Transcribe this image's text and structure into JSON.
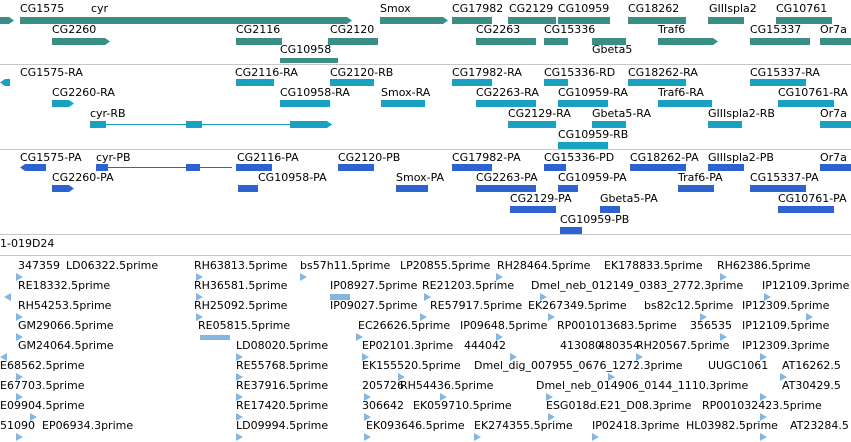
{
  "colors": {
    "gene": "#3a8e86",
    "transcript_ra": "#1aa0c0",
    "transcript_pa": "#2e63cf",
    "est": "#86b6de",
    "divider": "#c8c8c8"
  },
  "gene_track": {
    "labels": [
      "CG1575",
      "cyr",
      "CG2260",
      "CG2116",
      "CG10958",
      "CG2120",
      "Smox",
      "CG17982",
      "CG2129",
      "CG10959",
      "CG2263",
      "CG15336",
      "Gbeta5",
      "CG18262",
      "Traf6",
      "GIIIspla2",
      "CG10761",
      "CG15337",
      "Or7a"
    ]
  },
  "transcript_track": {
    "labels": [
      "CG1575-RA",
      "CG2260-RA",
      "cyr-RB",
      "CG2116-RA",
      "CG2120-RB",
      "CG10958-RA",
      "Smox-RA",
      "CG17982-RA",
      "CG2263-RA",
      "CG2129-RA",
      "CG15336-RD",
      "CG10959-RA",
      "Gbeta5-RA",
      "CG10959-RB",
      "CG18262-RA",
      "Traf6-RA",
      "GIIIspla2-RB",
      "CG15337-RA",
      "CG10761-RA",
      "Or7a"
    ]
  },
  "protein_track": {
    "labels": [
      "CG1575-PA",
      "cyr-PB",
      "CG2260-PA",
      "CG2116-PA",
      "CG10958-PA",
      "CG2120-PB",
      "Smox-PA",
      "CG17982-PA",
      "CG2263-PA",
      "CG2129-PA",
      "CG15336-PD",
      "CG10959-PA",
      "Gbeta5-PA",
      "CG10959-PB",
      "CG18262-PA",
      "GIIIspla2-PB",
      "Traf6-PA",
      "CG15337-PA",
      "CG10761-PA",
      "Or7a"
    ]
  },
  "clone_track": {
    "label": "1-019D24"
  },
  "est_track": {
    "labels": [
      "347359",
      "LD06322.5prime",
      "RH63813.5prime",
      "bs57h11.5prime",
      "LP20855.5prime",
      "RH28464.5prime",
      "EK178833.5prime",
      "RH62386.5prime",
      "RE18332.5prime",
      "RH36581.5prime",
      "IP08927.5prime",
      "RE21203.5prime",
      "Dmel_neb_012149_0383_2772.3prime",
      "IP12109.3prime",
      "RH54253.5prime",
      "RH25092.5prime",
      "IP09027.5prime",
      "RE57917.5prime",
      "EK267349.5prime",
      "bs82c12.5prime",
      "IP12309.5prime",
      "GM29066.5prime",
      "RE05815.5prime",
      "EC26626.5prime",
      "IP09648.5prime",
      "RP001013683.5prime",
      "356535",
      "IP12109.5prime",
      "GM24064.5prime",
      "LD08020.5prime",
      "EP02101.3prime",
      "444042",
      "413080",
      "480354",
      "RH20567.5prime",
      "IP12309.3prime",
      "E68562.5prime",
      "RE55768.5prime",
      "EK155520.5prime",
      "Dmel_dig_007955_0676_1272.3prime",
      "UUGC1061",
      "AT16262.5",
      "E67703.5prime",
      "RE37916.5prime",
      "205726",
      "RH54436.5prime",
      "Dmel_neb_014906_0144_1110.3prime",
      "AT30429.5",
      "E09904.5prime",
      "RE17420.5prime",
      "306642",
      "EK059710.5prime",
      "ESG018d.E21_D08.3prime",
      "RP001032423.5prime",
      "51090",
      "EP06934.3prime",
      "LD09994.5prime",
      "EK093646.5prime",
      "EK274355.5prime",
      "IP02418.3prime",
      "HL03982.5prime",
      "AT23284.5"
    ]
  }
}
